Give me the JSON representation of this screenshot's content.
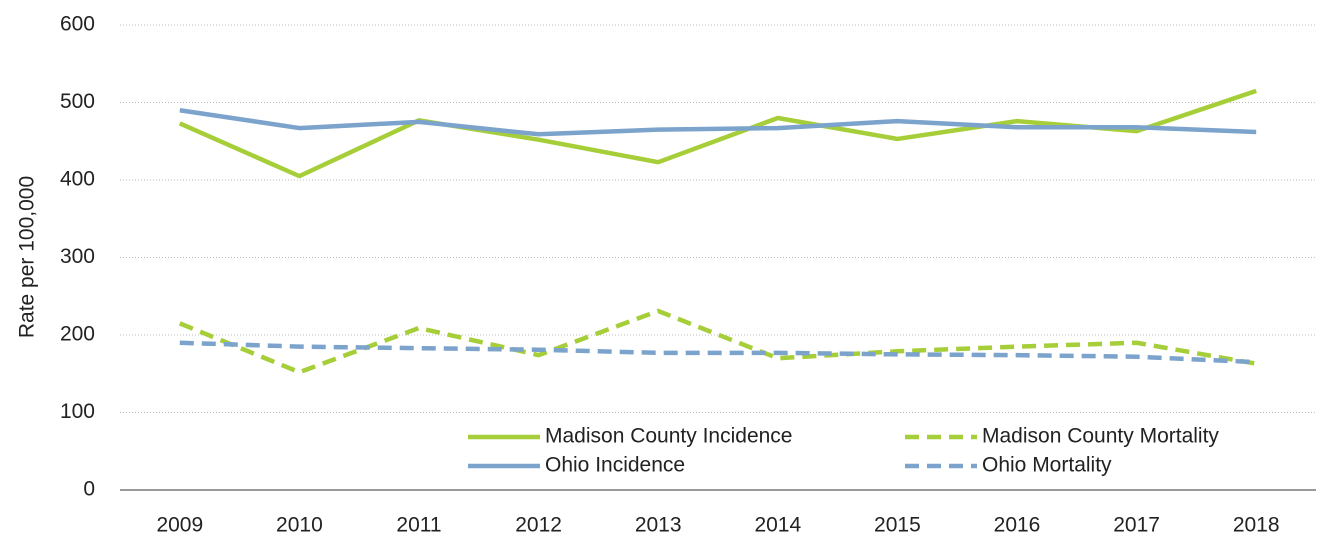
{
  "chart_data": {
    "type": "line",
    "ylabel": "Rate per 100,000",
    "categories": [
      "2009",
      "2010",
      "2011",
      "2012",
      "2013",
      "2014",
      "2015",
      "2016",
      "2017",
      "2018"
    ],
    "series": [
      {
        "name": "Madison County Incidence",
        "color": "#a6ce39",
        "dashed": false,
        "values": [
          473,
          405,
          477,
          452,
          423,
          480,
          453,
          476,
          463,
          515
        ]
      },
      {
        "name": "Madison County Mortality",
        "color": "#a6ce39",
        "dashed": true,
        "values": [
          215,
          152,
          209,
          174,
          231,
          170,
          179,
          185,
          190,
          163
        ]
      },
      {
        "name": "Ohio Incidence",
        "color": "#7ba3cc",
        "dashed": false,
        "values": [
          490,
          467,
          475,
          459,
          465,
          467,
          476,
          468,
          468,
          462
        ]
      },
      {
        "name": "Ohio Mortality",
        "color": "#7ba3cc",
        "dashed": true,
        "values": [
          190,
          185,
          183,
          181,
          177,
          177,
          175,
          174,
          172,
          165
        ]
      }
    ],
    "ylim": [
      0,
      600
    ],
    "yticks": [
      0,
      100,
      200,
      300,
      400,
      500,
      600
    ],
    "grid": true,
    "legend": "lower right"
  }
}
